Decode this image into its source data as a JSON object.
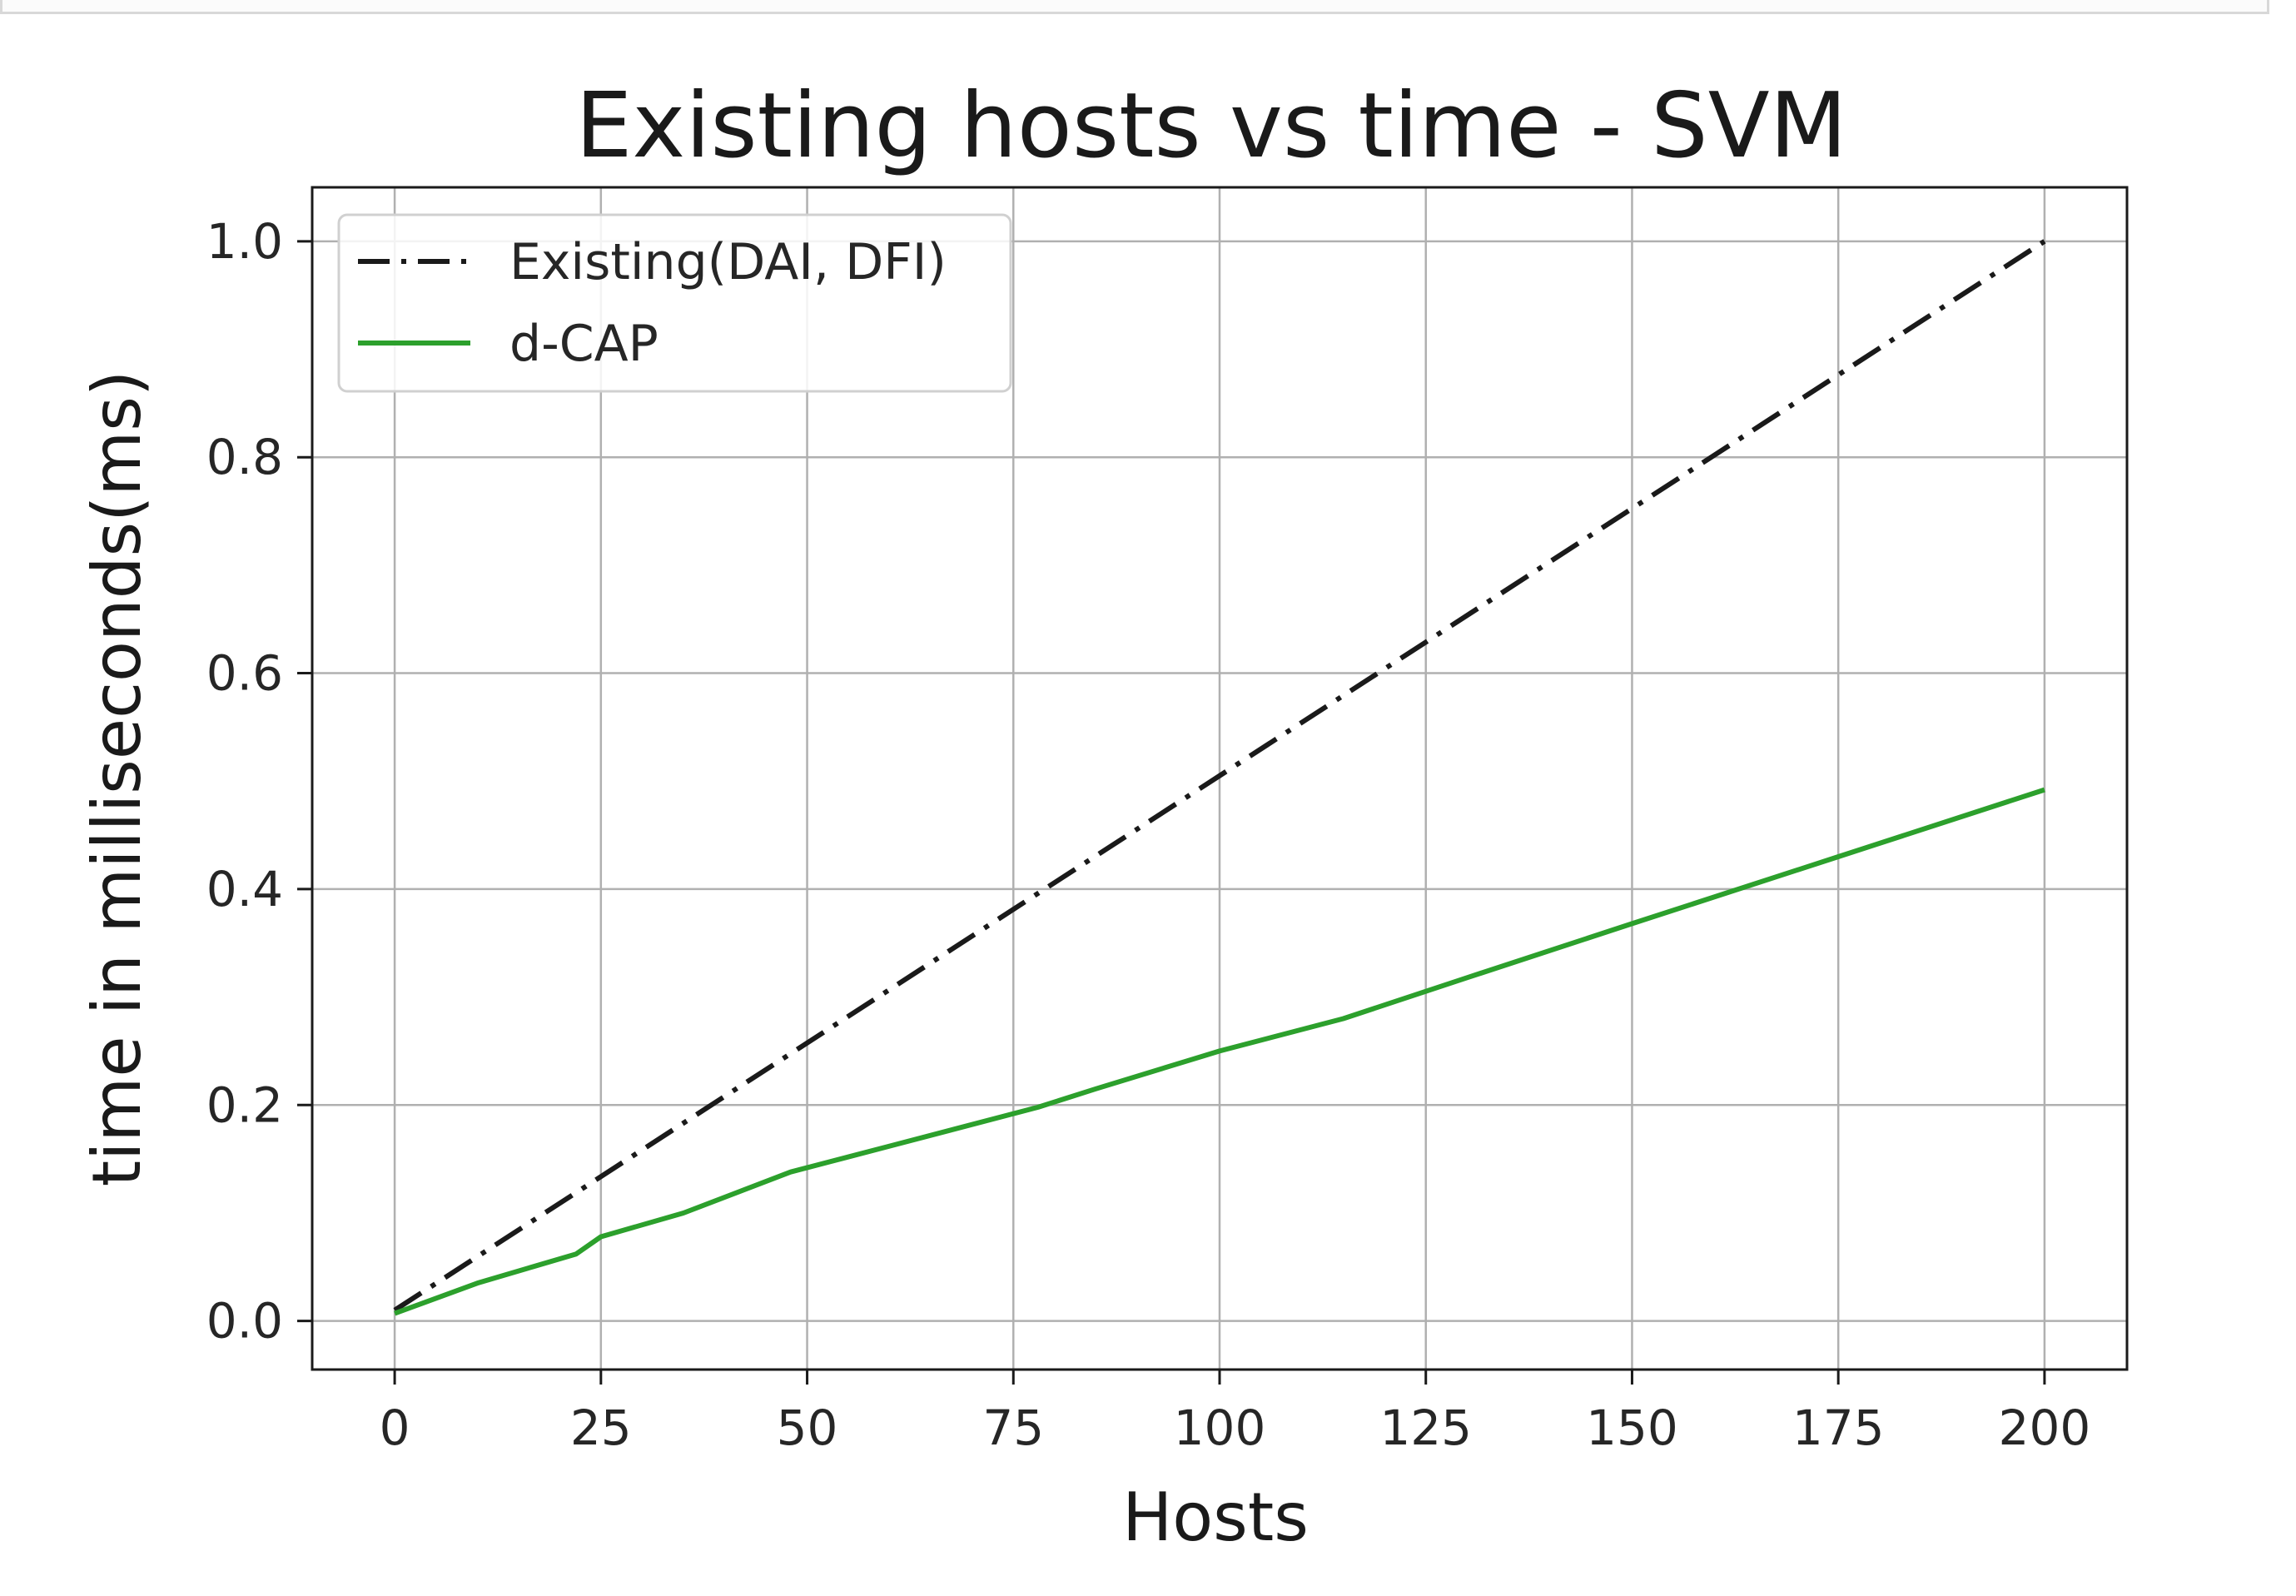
{
  "chart_data": {
    "type": "line",
    "title": "Existing hosts vs time - SVM",
    "xlabel": "Hosts",
    "ylabel": "time in milliseconds(ms)",
    "xlim": [
      -10,
      210
    ],
    "ylim": [
      -0.045,
      1.05
    ],
    "xticks": [
      0,
      25,
      50,
      75,
      100,
      125,
      150,
      175,
      200
    ],
    "xtick_labels": [
      "0",
      "25",
      "50",
      "75",
      "100",
      "125",
      "150",
      "175",
      "200"
    ],
    "yticks": [
      0.0,
      0.2,
      0.4,
      0.6,
      0.8,
      1.0
    ],
    "ytick_labels": [
      "0.0",
      "0.2",
      "0.4",
      "0.6",
      "0.8",
      "1.0"
    ],
    "grid": true,
    "legend_position": "top-left",
    "series": [
      {
        "name": "Existing(DAI, DFI)",
        "color": "#1a1a1a",
        "style": "dash-dot",
        "x": [
          0,
          200
        ],
        "y": [
          0.01,
          1.0
        ]
      },
      {
        "name": "d-CAP",
        "color": "#2ca02c",
        "style": "solid",
        "x": [
          0,
          10,
          22,
          25,
          35,
          48,
          60,
          78,
          85,
          100,
          115,
          130,
          150,
          175,
          200
        ],
        "y": [
          0.007,
          0.035,
          0.062,
          0.078,
          0.1,
          0.138,
          0.162,
          0.198,
          0.215,
          0.25,
          0.28,
          0.318,
          0.368,
          0.43,
          0.492
        ]
      }
    ]
  }
}
